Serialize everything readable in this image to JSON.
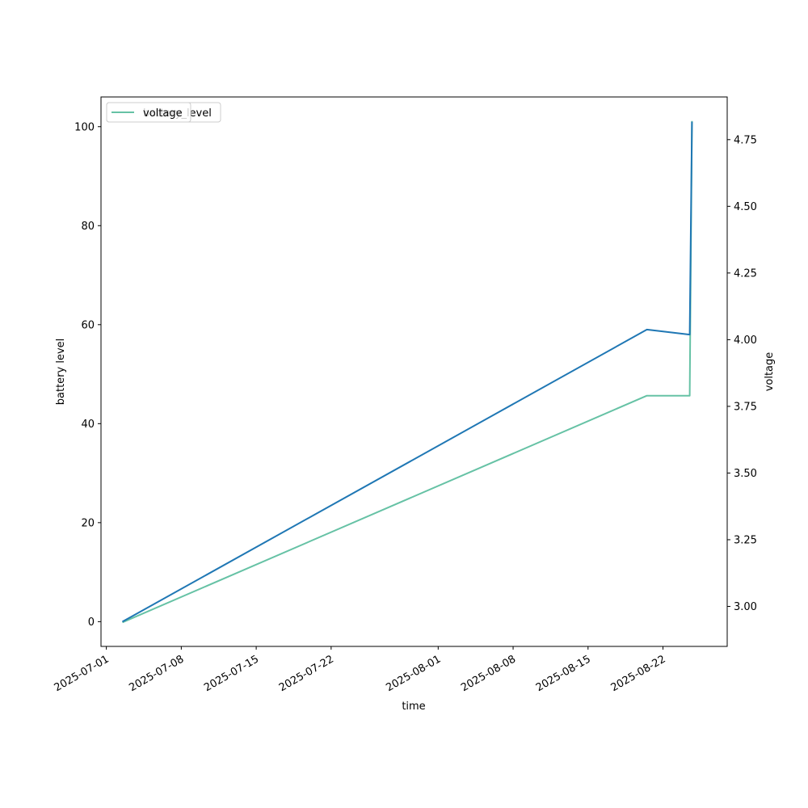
{
  "chart_data": {
    "type": "line",
    "xlabel": "time",
    "ylabel_left": "battery level",
    "ylabel_right": "voltage",
    "x_ticks": [
      "2025-07-01",
      "2025-07-08",
      "2025-07-15",
      "2025-07-22",
      "2025-08-01",
      "2025-08-08",
      "2025-08-15",
      "2025-08-22"
    ],
    "y_left_ticks": [
      0,
      20,
      40,
      60,
      80,
      100
    ],
    "y_right_ticks": [
      "3.00",
      "3.25",
      "3.50",
      "3.75",
      "4.00",
      "4.25",
      "4.50",
      "4.75"
    ],
    "x_range": [
      "2025-06-30T12:00",
      "2025-08-28T00:00"
    ],
    "y_left_range": [
      -5,
      106
    ],
    "y_right_range": [
      2.85,
      4.91
    ],
    "legend_placement": "top-left",
    "legend_overlap_text": "battery_level",
    "legend_text": "voltage",
    "series": [
      {
        "name": "battery_level",
        "axis": "left",
        "color": "#1f77b4",
        "points": [
          [
            "2025-07-02T12:00",
            0
          ],
          [
            "2025-08-20T12:00",
            59
          ],
          [
            "2025-08-24T12:00",
            58
          ],
          [
            "2025-08-24T17:00",
            101
          ]
        ]
      },
      {
        "name": "voltage",
        "axis": "right",
        "color": "#66c2a5",
        "points": [
          [
            "2025-07-02T12:00",
            2.94
          ],
          [
            "2025-08-20T12:00",
            3.79
          ],
          [
            "2025-08-24T12:00",
            3.79
          ],
          [
            "2025-08-24T17:00",
            4.82
          ]
        ]
      }
    ]
  }
}
